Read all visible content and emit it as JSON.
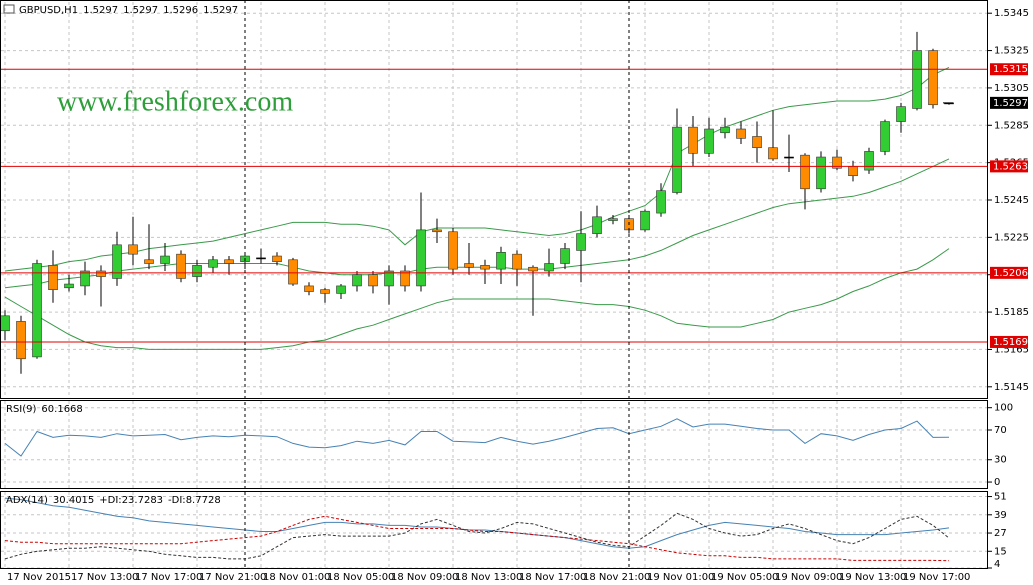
{
  "chart_data": [
    {
      "type": "candlestick",
      "title": "GBPUSD,H1",
      "watermark": "www.freshforex.com",
      "categories": [
        "17 Nov 2015",
        null,
        null,
        null,
        "17 Nov 13:00",
        null,
        null,
        null,
        "17 Nov 17:00",
        null,
        null,
        null,
        "17 Nov 21:00",
        null,
        null,
        null,
        "18 Nov 01:00",
        null,
        null,
        null,
        "18 Nov 05:00",
        null,
        null,
        null,
        "18 Nov 09:00",
        null,
        null,
        null,
        "18 Nov 13:00",
        null,
        null,
        null,
        "18 Nov 17:00",
        null,
        null,
        null,
        "18 Nov 21:00",
        null,
        null,
        null,
        "19 Nov 01:00",
        null,
        null,
        null,
        "19 Nov 05:00",
        null,
        null,
        null,
        "19 Nov 09:00",
        null,
        null,
        null,
        "19 Nov 13:00",
        null,
        null,
        null,
        "19 Nov 17:00",
        null,
        null,
        null
      ],
      "open": [
        1.5175,
        1.518,
        1.5161,
        1.521,
        1.5198,
        1.5199,
        1.5207,
        1.5203,
        1.5221,
        1.5213,
        1.5211,
        1.5216,
        1.5204,
        1.5209,
        1.5213,
        1.5212,
        1.5214,
        1.5215,
        1.5213,
        1.5199,
        1.5197,
        1.5195,
        1.5199,
        1.5205,
        1.5199,
        1.5207,
        1.5199,
        1.5229,
        1.5228,
        1.5211,
        1.521,
        1.5208,
        1.5216,
        1.5209,
        1.5207,
        1.5211,
        1.5218,
        1.5227,
        1.5234,
        1.5235,
        1.5229,
        1.5238,
        1.5249,
        1.5284,
        1.527,
        1.5281,
        1.5283,
        1.5279,
        1.5273,
        1.5268,
        1.5269,
        1.5251,
        1.5268,
        1.5263,
        1.5261,
        1.5271,
        1.5287,
        1.5294,
        1.5325,
        1.5297
      ],
      "high": [
        1.5186,
        1.5183,
        1.5213,
        1.5218,
        1.5205,
        1.5212,
        1.521,
        1.5228,
        1.5236,
        1.5232,
        1.5222,
        1.5218,
        1.5213,
        1.5215,
        1.5215,
        1.5217,
        1.5219,
        1.5217,
        1.5214,
        1.5201,
        1.5198,
        1.52,
        1.5207,
        1.5207,
        1.521,
        1.521,
        1.5249,
        1.5235,
        1.523,
        1.5222,
        1.5213,
        1.522,
        1.5218,
        1.521,
        1.5219,
        1.5222,
        1.5239,
        1.5242,
        1.5237,
        1.5237,
        1.524,
        1.5254,
        1.5294,
        1.529,
        1.5289,
        1.5289,
        1.5287,
        1.5287,
        1.5293,
        1.528,
        1.527,
        1.5271,
        1.5272,
        1.5266,
        1.5273,
        1.5288,
        1.5297,
        1.5335,
        1.5326,
        1.5297
      ],
      "low": [
        1.517,
        1.5152,
        1.516,
        1.519,
        1.5196,
        1.5194,
        1.5188,
        1.5199,
        1.521,
        1.5208,
        1.5207,
        1.5201,
        1.5201,
        1.5206,
        1.5205,
        1.5208,
        1.5211,
        1.521,
        1.5199,
        1.5194,
        1.519,
        1.5192,
        1.5196,
        1.5195,
        1.5189,
        1.5196,
        1.5196,
        1.5222,
        1.5205,
        1.5205,
        1.52,
        1.52,
        1.5199,
        1.5183,
        1.5204,
        1.5208,
        1.5201,
        1.5225,
        1.5232,
        1.5227,
        1.5228,
        1.5236,
        1.5248,
        1.5263,
        1.5268,
        1.5278,
        1.5275,
        1.5265,
        1.5266,
        1.526,
        1.524,
        1.5249,
        1.5261,
        1.5255,
        1.5259,
        1.5269,
        1.5281,
        1.5293,
        1.5294,
        1.5296
      ],
      "close": [
        1.5183,
        1.516,
        1.5211,
        1.5197,
        1.52,
        1.5207,
        1.5204,
        1.5221,
        1.5216,
        1.5211,
        1.5215,
        1.5203,
        1.521,
        1.5213,
        1.5211,
        1.5215,
        1.5214,
        1.5212,
        1.52,
        1.5196,
        1.5195,
        1.5199,
        1.5205,
        1.5199,
        1.5207,
        1.5199,
        1.5229,
        1.5228,
        1.5208,
        1.5209,
        1.5208,
        1.5217,
        1.5208,
        1.5207,
        1.5211,
        1.5219,
        1.5227,
        1.5236,
        1.5235,
        1.5229,
        1.5239,
        1.525,
        1.5284,
        1.527,
        1.5283,
        1.5284,
        1.5278,
        1.5273,
        1.5267,
        1.5268,
        1.5251,
        1.5268,
        1.5262,
        1.5258,
        1.5271,
        1.5287,
        1.5295,
        1.5325,
        1.5296,
        1.5297
      ],
      "up_color": "#32cd32",
      "down_color": "#ff8c00",
      "doji_color": "#000000",
      "bands": {
        "color": "#3a9a4a",
        "upper": [
          1.5207,
          1.5208,
          1.5209,
          1.521,
          1.5212,
          1.5213,
          1.5215,
          1.5216,
          1.5217,
          1.5219,
          1.522,
          1.5221,
          1.5222,
          1.5223,
          1.5225,
          1.5227,
          1.5229,
          1.5231,
          1.5233,
          1.5233,
          1.5233,
          1.5232,
          1.5232,
          1.5231,
          1.5229,
          1.5221,
          1.5228,
          1.523,
          1.523,
          1.523,
          1.523,
          1.5229,
          1.5228,
          1.5227,
          1.5226,
          1.5227,
          1.5229,
          1.5232,
          1.5236,
          1.5239,
          1.5242,
          1.5249,
          1.527,
          1.5275,
          1.528,
          1.5284,
          1.5287,
          1.529,
          1.5293,
          1.5295,
          1.5296,
          1.5297,
          1.5298,
          1.5298,
          1.5298,
          1.5299,
          1.5301,
          1.5305,
          1.5312,
          1.5316
        ],
        "middle": [
          1.5198,
          1.5199,
          1.52,
          1.5202,
          1.5203,
          1.5204,
          1.5205,
          1.5207,
          1.5208,
          1.5209,
          1.521,
          1.5211,
          1.5211,
          1.5211,
          1.5211,
          1.5211,
          1.5211,
          1.5211,
          1.5209,
          1.5207,
          1.5206,
          1.5205,
          1.5205,
          1.5205,
          1.5206,
          1.5206,
          1.5208,
          1.5209,
          1.5209,
          1.5209,
          1.5209,
          1.5209,
          1.5208,
          1.5208,
          1.5208,
          1.5209,
          1.521,
          1.5211,
          1.5212,
          1.5213,
          1.5215,
          1.5218,
          1.5222,
          1.5226,
          1.5229,
          1.5232,
          1.5235,
          1.5238,
          1.5241,
          1.5243,
          1.5244,
          1.5245,
          1.5246,
          1.5247,
          1.5249,
          1.5252,
          1.5255,
          1.5259,
          1.5263,
          1.5267
        ],
        "lower": [
          1.5193,
          1.5188,
          1.5183,
          1.5178,
          1.5173,
          1.5169,
          1.5167,
          1.5166,
          1.5166,
          1.5165,
          1.5165,
          1.5165,
          1.5165,
          1.5165,
          1.5165,
          1.5165,
          1.5165,
          1.5166,
          1.5167,
          1.5169,
          1.517,
          1.5173,
          1.5176,
          1.5178,
          1.5181,
          1.5184,
          1.5187,
          1.519,
          1.5192,
          1.5192,
          1.5192,
          1.5192,
          1.5192,
          1.5192,
          1.5192,
          1.5191,
          1.519,
          1.5189,
          1.5189,
          1.5188,
          1.5186,
          1.5183,
          1.5179,
          1.5178,
          1.5177,
          1.5177,
          1.5177,
          1.5179,
          1.5181,
          1.5185,
          1.5187,
          1.5189,
          1.5192,
          1.5196,
          1.5199,
          1.5203,
          1.5206,
          1.5208,
          1.5213,
          1.5219
        ]
      },
      "levels": {
        "color": "#e00000",
        "values": [
          1.5315,
          1.5263,
          1.5206,
          1.5169
        ]
      },
      "ylim": [
        1.5139,
        1.5351
      ],
      "yticks": [
        1.5345,
        1.5325,
        1.5305,
        1.5285,
        1.5265,
        1.5245,
        1.5225,
        1.5205,
        1.5185,
        1.5165,
        1.5145
      ],
      "grid": true
    },
    {
      "type": "line",
      "title": "RSI(9)",
      "series": [
        {
          "color": "#4682b4",
          "dash": false,
          "values": [
            52,
            35,
            68,
            60,
            63,
            62,
            60,
            65,
            62,
            63,
            64,
            57,
            60,
            62,
            61,
            63,
            62,
            61,
            52,
            47,
            46,
            49,
            55,
            52,
            56,
            50,
            68,
            68,
            55,
            54,
            53,
            60,
            55,
            51,
            55,
            60,
            66,
            72,
            73,
            65,
            70,
            75,
            85,
            74,
            78,
            78,
            75,
            72,
            70,
            70,
            52,
            65,
            62,
            56,
            64,
            70,
            72,
            82,
            60,
            60.1668
          ]
        }
      ],
      "ylim": [
        -8,
        109
      ],
      "yticks": [
        100,
        70,
        30,
        0
      ],
      "grid": true
    },
    {
      "type": "line",
      "series": [
        {
          "name": "ADX(14)",
          "color": "#4682b4",
          "dash": false,
          "values": [
            50,
            49,
            47,
            45,
            44,
            42,
            40,
            38,
            37,
            35,
            34,
            33,
            32,
            31,
            30,
            29,
            28,
            28,
            30,
            32,
            34,
            34,
            33,
            33,
            32,
            32,
            31,
            31,
            30,
            29,
            29,
            28,
            27,
            26,
            25,
            24,
            22,
            20,
            18,
            17,
            18,
            22,
            26,
            29,
            32,
            34,
            33,
            32,
            31,
            30,
            28,
            27,
            26,
            26,
            26,
            26,
            27,
            28,
            29,
            30.4015
          ]
        },
        {
          "name": "+DI:",
          "color": "#333333",
          "dash": true,
          "values": [
            10,
            13,
            15,
            16,
            17,
            17,
            18,
            17,
            16,
            15,
            13,
            12,
            11,
            11,
            10,
            10,
            12,
            18,
            24,
            25,
            26,
            25,
            25,
            25,
            25,
            27,
            33,
            36,
            32,
            28,
            27,
            30,
            34,
            33,
            30,
            27,
            24,
            21,
            19,
            18,
            25,
            32,
            40,
            36,
            30,
            27,
            25,
            26,
            30,
            33,
            30,
            26,
            22,
            20,
            24,
            30,
            36,
            38,
            32,
            23.7283
          ]
        },
        {
          "name": "-DI:",
          "color": "#cc0000",
          "dash": true,
          "values": [
            22,
            21,
            21,
            20,
            20,
            20,
            20,
            20,
            20,
            20,
            20,
            20,
            21,
            22,
            23,
            24,
            25,
            28,
            32,
            36,
            38,
            36,
            34,
            32,
            30,
            30,
            30,
            30,
            30,
            29,
            28,
            28,
            27,
            26,
            25,
            24,
            23,
            22,
            21,
            20,
            18,
            16,
            14,
            13,
            12,
            12,
            11,
            11,
            10,
            10,
            10,
            10,
            10,
            9,
            9,
            9,
            9,
            9,
            9,
            8.7728
          ]
        }
      ],
      "ylim": [
        4,
        54
      ],
      "yticks": [
        51,
        39,
        27,
        15,
        4
      ],
      "grid": true
    }
  ]
}
